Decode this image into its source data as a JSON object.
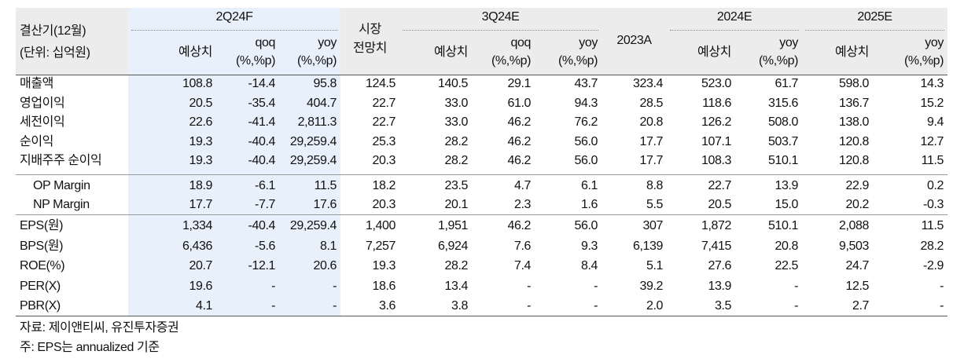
{
  "header": {
    "corner": [
      "결산기(12월)",
      "(단위: 십억원)"
    ],
    "groups": [
      "2Q24F",
      "3Q24E",
      "2024E",
      "2025E"
    ],
    "columns": [
      [
        "예상치"
      ],
      [
        "qoq",
        "(%,%p)"
      ],
      [
        "yoy",
        "(%,%p)"
      ],
      [
        "시장",
        "전망치"
      ],
      [
        "예상치"
      ],
      [
        "qoq",
        "(%,%p)"
      ],
      [
        "yoy",
        "(%,%p)"
      ],
      [
        "2023A"
      ],
      [
        "예상치"
      ],
      [
        "yoy",
        "(%,%p)"
      ],
      [
        "예상치"
      ],
      [
        "yoy",
        "(%,%p)"
      ]
    ]
  },
  "table": {
    "sections": [
      [
        [
          "매출액",
          "108.8",
          "-14.4",
          "95.8",
          "124.5",
          "140.5",
          "29.1",
          "43.7",
          "323.4",
          "523.0",
          "61.7",
          "598.0",
          "14.3"
        ],
        [
          "영업이익",
          "20.5",
          "-35.4",
          "404.7",
          "22.7",
          "33.0",
          "61.0",
          "94.3",
          "28.5",
          "118.6",
          "315.6",
          "136.7",
          "15.2"
        ],
        [
          "세전이익",
          "22.6",
          "-41.4",
          "2,811.3",
          "22.7",
          "33.0",
          "46.2",
          "76.2",
          "20.8",
          "126.2",
          "508.0",
          "138.0",
          "9.4"
        ],
        [
          "순이익",
          "19.3",
          "-40.4",
          "29,259.4",
          "25.3",
          "28.2",
          "46.2",
          "56.0",
          "17.7",
          "107.1",
          "503.7",
          "120.8",
          "12.7"
        ],
        [
          "지배주주 순이익",
          "19.3",
          "-40.4",
          "29,259.4",
          "20.3",
          "28.2",
          "46.2",
          "56.0",
          "17.7",
          "108.3",
          "510.1",
          "120.8",
          "11.5"
        ]
      ],
      [
        [
          "OP Margin",
          "18.9",
          "-6.1",
          "11.5",
          "18.2",
          "23.5",
          "4.7",
          "6.1",
          "8.8",
          "22.7",
          "13.9",
          "22.9",
          "0.2"
        ],
        [
          "NP Margin",
          "17.7",
          "-7.7",
          "17.6",
          "20.3",
          "20.1",
          "2.3",
          "1.6",
          "5.5",
          "20.5",
          "15.0",
          "20.2",
          "-0.3"
        ]
      ],
      [
        [
          "EPS(원)",
          "1,334",
          "-40.4",
          "29,259.4",
          "1,400",
          "1,951",
          "46.2",
          "56.0",
          "307",
          "1,872",
          "510.1",
          "2,088",
          "11.5"
        ],
        [
          "BPS(원)",
          "6,436",
          "-5.6",
          "8.1",
          "7,257",
          "6,924",
          "7.6",
          "9.3",
          "6,139",
          "7,415",
          "20.8",
          "9,503",
          "28.2"
        ],
        [
          "ROE(%)",
          "20.7",
          "-12.1",
          "20.6",
          "19.3",
          "28.2",
          "7.4",
          "8.4",
          "5.1",
          "27.6",
          "22.5",
          "24.7",
          "-2.9"
        ],
        [
          "PER(X)",
          "19.6",
          "-",
          "-",
          "18.6",
          "13.4",
          "-",
          "-",
          "39.2",
          "13.9",
          "-",
          "12.5",
          "-"
        ],
        [
          "PBR(X)",
          "4.1",
          "-",
          "-",
          "3.6",
          "3.8",
          "-",
          "-",
          "2.0",
          "3.5",
          "-",
          "2.7",
          "-"
        ]
      ]
    ]
  },
  "notes": [
    "자료: 제이앤티씨, 유진투자증권",
    "주: EPS는 annualized 기준"
  ]
}
